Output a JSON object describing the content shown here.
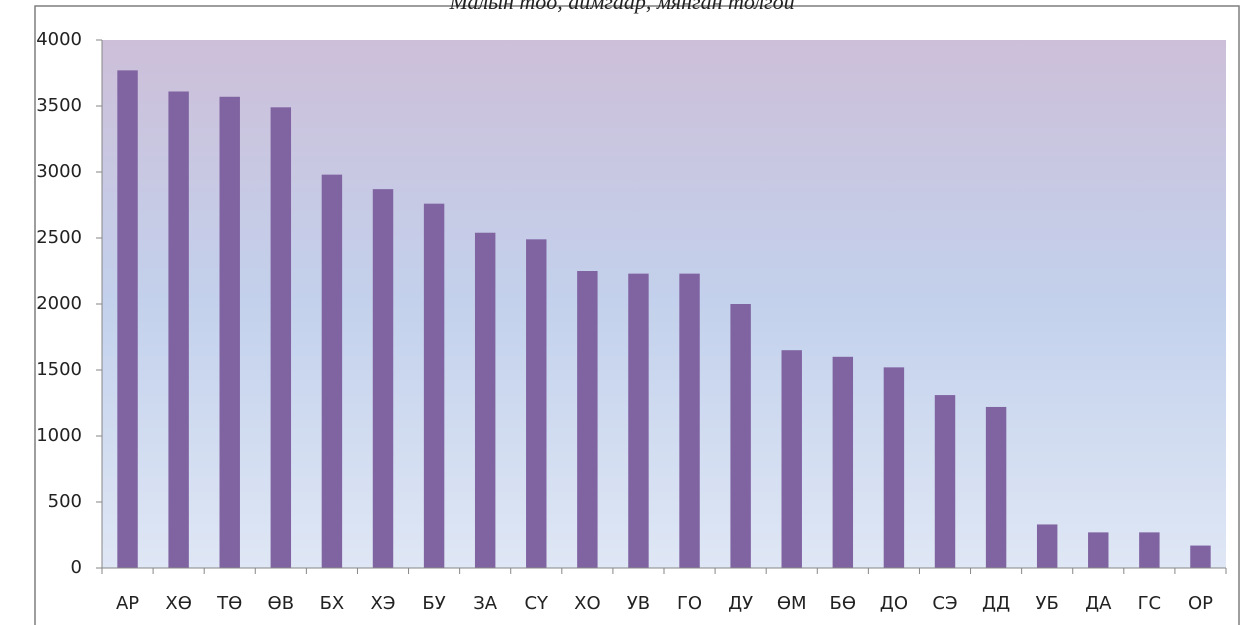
{
  "chart_data": {
    "type": "bar",
    "title": "Малын тоо, аймгаар, мянган толгой",
    "categories": [
      "АР",
      "ХӨ",
      "ТӨ",
      "ӨВ",
      "БХ",
      "ХЭ",
      "БУ",
      "ЗА",
      "СҮ",
      "ХО",
      "УВ",
      "ГО",
      "ДУ",
      "ӨМ",
      "БӨ",
      "ДО",
      "СЭ",
      "ДД",
      "УБ",
      "ДА",
      "ГС",
      "ОР"
    ],
    "values": [
      3770,
      3610,
      3570,
      3490,
      2980,
      2870,
      2760,
      2540,
      2490,
      2250,
      2230,
      2230,
      2000,
      1650,
      1600,
      1520,
      1310,
      1220,
      330,
      270,
      270,
      170
    ],
    "color": "#8064a2",
    "ylim": [
      0,
      4000
    ],
    "yticks": [
      0,
      500,
      1000,
      1500,
      2000,
      2500,
      3000,
      3500,
      4000
    ],
    "grid": false
  }
}
